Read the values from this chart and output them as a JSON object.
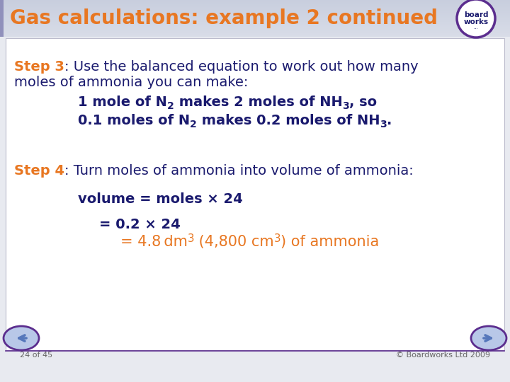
{
  "title": "Gas calculations: example 2 continued",
  "title_color": "#E87722",
  "title_bg": "#d0d4e8",
  "slide_bg": "#e8eaf0",
  "body_bg": "#ffffff",
  "step3_label": "Step 3",
  "step3_colon": ":",
  "step3_line1": " Use the balanced equation to work out how many",
  "step3_line2": "moles of ammonia you can make:",
  "step3_color": "#E87722",
  "step3_text_color": "#1a1a6e",
  "step4_label": "Step 4",
  "step4_colon": ":",
  "step4_text": " Turn moles of ammonia into volume of ammonia:",
  "step4_color": "#E87722",
  "step4_text_color": "#1a1a6e",
  "eq1": "volume = moles × 24",
  "eq2": "= 0.2 × 24",
  "footer_left": "24 of 45",
  "footer_right": "© Boardworks Ltd 2009",
  "footer_color": "#666666",
  "orange": "#E87722",
  "navy": "#1a1a6e",
  "purple": "#5b2d8e"
}
